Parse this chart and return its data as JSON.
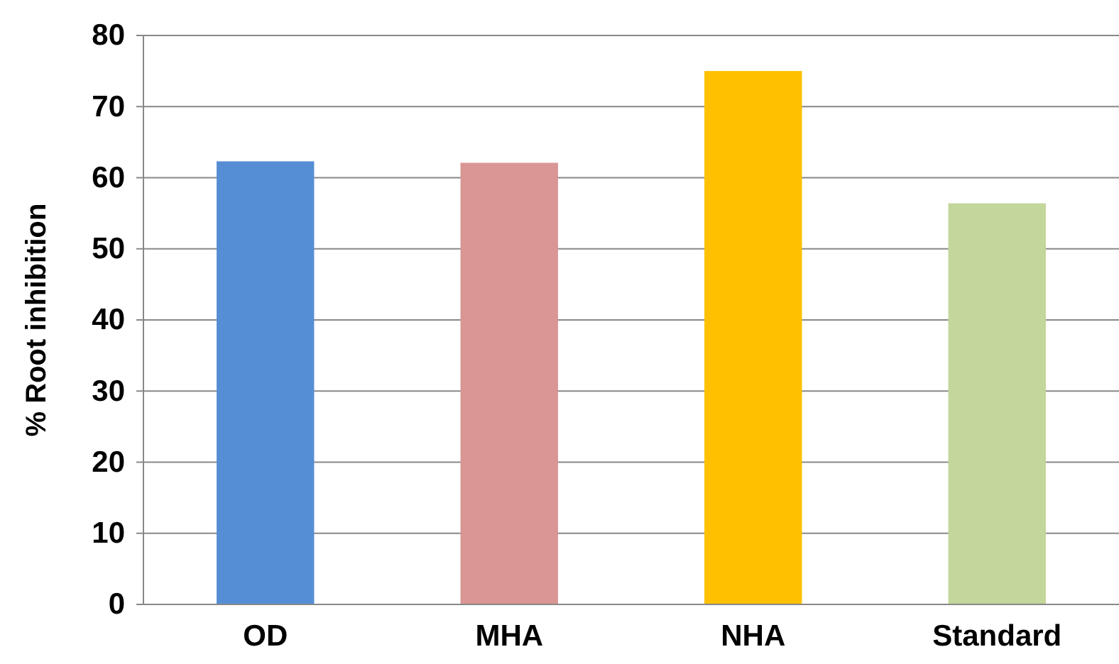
{
  "chart_data": {
    "type": "bar",
    "ylabel": "% Root inhibition",
    "categories": [
      "OD",
      "MHA",
      "NHA",
      "Standard"
    ],
    "values": [
      62.3,
      62.1,
      75.0,
      56.4
    ],
    "colors": [
      "#558ed5",
      "#d99694",
      "#ffc000",
      "#c3d69b"
    ],
    "ylim": [
      0,
      80
    ],
    "yticks": [
      0,
      10,
      20,
      30,
      40,
      50,
      60,
      70,
      80
    ],
    "grid": "y"
  }
}
